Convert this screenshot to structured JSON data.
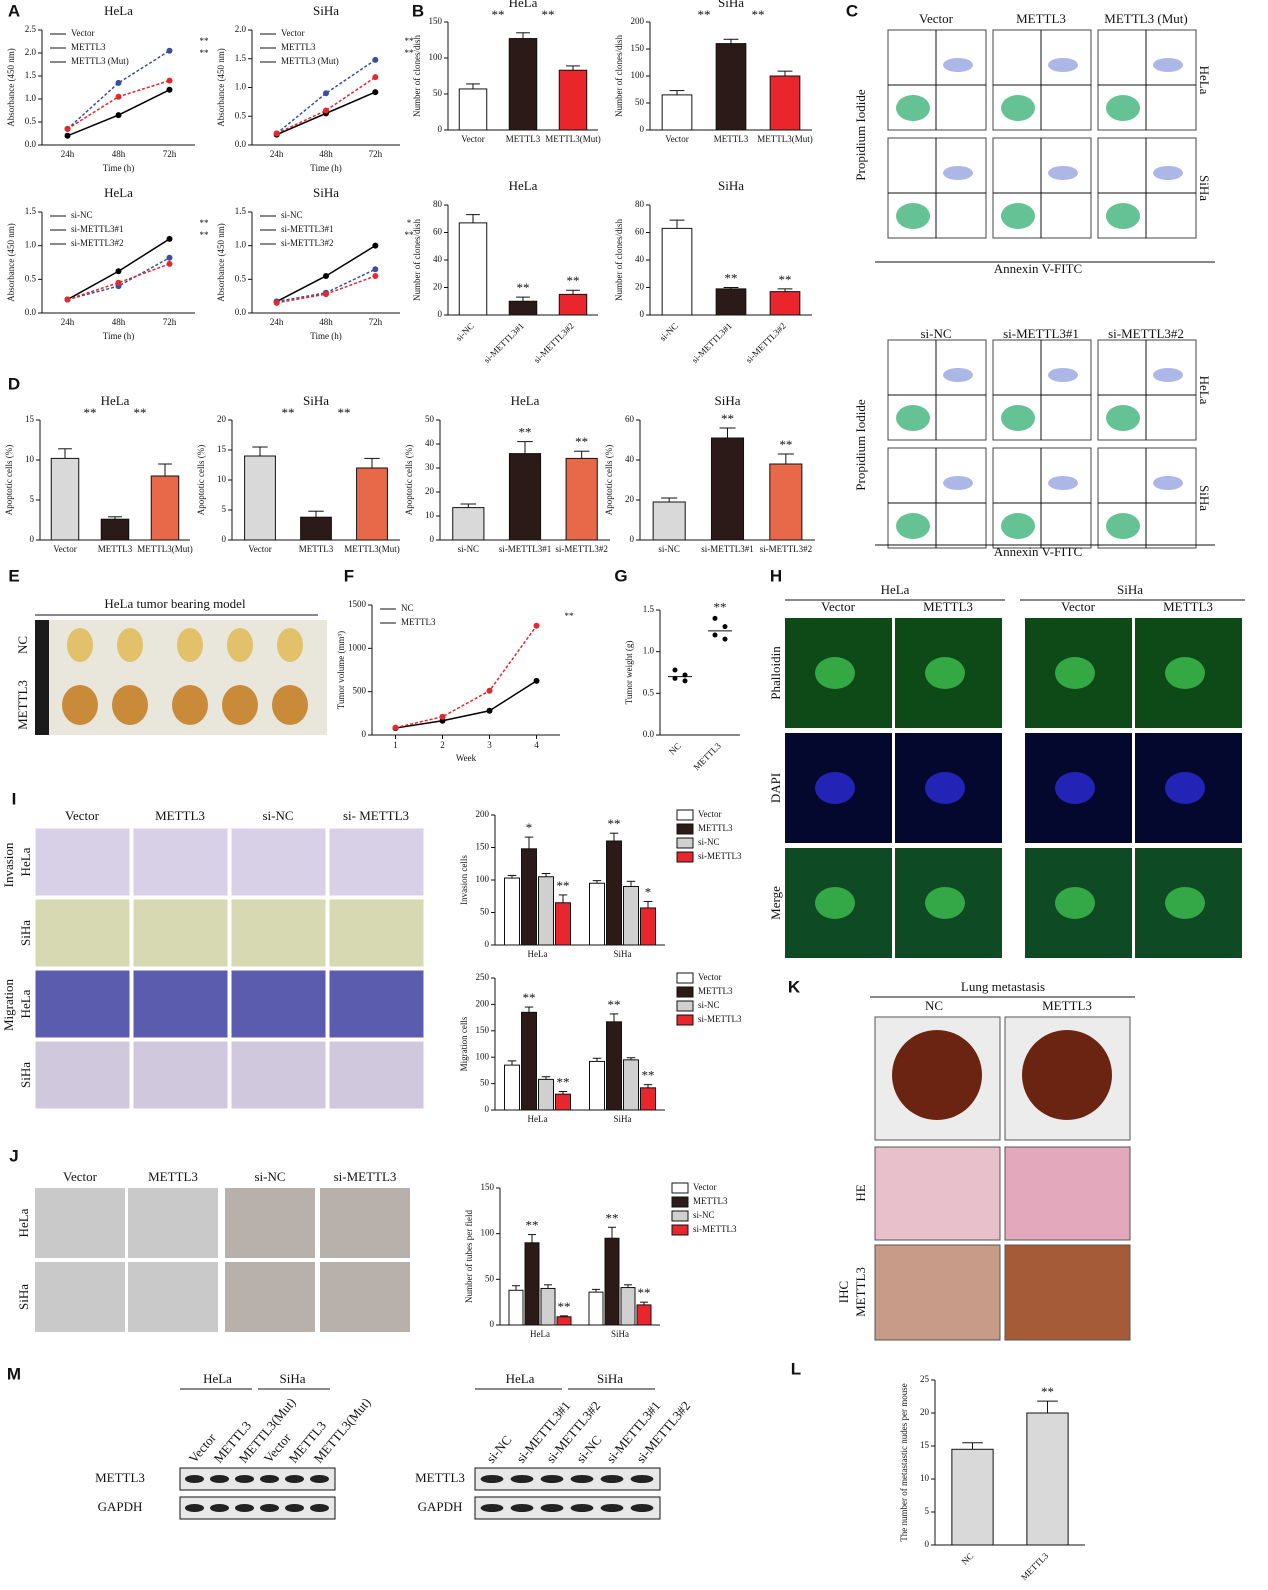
{
  "panel_letters": [
    "A",
    "B",
    "C",
    "D",
    "E",
    "F",
    "G",
    "H",
    "I",
    "J",
    "K",
    "M",
    "L"
  ],
  "chart_data": [
    {
      "type": "line",
      "title": "HeLa",
      "xlabel": "Time (h)",
      "ylabel": "Absorbance (450 nm)",
      "categories": [
        "24h",
        "48h",
        "72h"
      ],
      "series": [
        {
          "name": "Vector",
          "color": "#000000",
          "values": [
            0.2,
            0.65,
            1.2
          ]
        },
        {
          "name": "METTL3",
          "color": "#3a4ea0",
          "values": [
            0.35,
            1.35,
            2.05
          ]
        },
        {
          "name": "METTL3 (Mut)",
          "color": "#e8262b",
          "values": [
            0.35,
            1.05,
            1.4
          ]
        }
      ],
      "ylim": [
        0,
        2.5
      ],
      "yticks": [
        {
          "value": 0,
          "label": "0.0"
        },
        {
          "value": 0.5,
          "label": "0.5"
        },
        {
          "value": 1,
          "label": "1.0"
        },
        {
          "value": 1.5,
          "label": "1.5"
        },
        {
          "value": 2,
          "label": "2.0"
        },
        {
          "value": 2.5,
          "label": "2.5"
        }
      ],
      "legend": "top-left",
      "annotations": [
        "**",
        "**"
      ]
    },
    {
      "type": "line",
      "title": "SiHa",
      "xlabel": "Time (h)",
      "ylabel": "Absorbance (450 nm)",
      "categories": [
        "24h",
        "48h",
        "72h"
      ],
      "series": [
        {
          "name": "Vector",
          "color": "#000000",
          "values": [
            0.18,
            0.55,
            0.92
          ]
        },
        {
          "name": "METTL3",
          "color": "#3a4ea0",
          "values": [
            0.2,
            0.9,
            1.48
          ]
        },
        {
          "name": "METTL3 (Mut)",
          "color": "#e8262b",
          "values": [
            0.2,
            0.6,
            1.18
          ]
        }
      ],
      "ylim": [
        0,
        2
      ],
      "yticks": [
        {
          "value": 0,
          "label": "0.0"
        },
        {
          "value": 0.5,
          "label": "0.5"
        },
        {
          "value": 1,
          "label": "1.0"
        },
        {
          "value": 1.5,
          "label": "1.5"
        },
        {
          "value": 2,
          "label": "2.0"
        }
      ],
      "legend": "top-left",
      "annotations": [
        "**",
        "**"
      ]
    },
    {
      "type": "line",
      "title": "HeLa",
      "xlabel": "Time (h)",
      "ylabel": "Absorbance (450 nm)",
      "categories": [
        "24h",
        "48h",
        "72h"
      ],
      "series": [
        {
          "name": "si-NC",
          "color": "#000000",
          "values": [
            0.2,
            0.62,
            1.1
          ]
        },
        {
          "name": "si-METTL3#1",
          "color": "#3a4ea0",
          "values": [
            0.2,
            0.4,
            0.82
          ]
        },
        {
          "name": "si-METTL3#2",
          "color": "#e8262b",
          "values": [
            0.2,
            0.45,
            0.73
          ]
        }
      ],
      "ylim": [
        0,
        1.5
      ],
      "yticks": [
        {
          "value": 0,
          "label": "0.0"
        },
        {
          "value": 0.5,
          "label": "0.5"
        },
        {
          "value": 1,
          "label": "1.0"
        },
        {
          "value": 1.5,
          "label": "1.5"
        }
      ],
      "legend": "top-left",
      "annotations": [
        "**",
        "**"
      ]
    },
    {
      "type": "line",
      "title": "SiHa",
      "xlabel": "Time (h)",
      "ylabel": "Absorbance (450 nm)",
      "categories": [
        "24h",
        "48h",
        "72h"
      ],
      "series": [
        {
          "name": "si-NC",
          "color": "#000000",
          "values": [
            0.17,
            0.55,
            1.0
          ]
        },
        {
          "name": "si-METTL3#1",
          "color": "#3a4ea0",
          "values": [
            0.17,
            0.3,
            0.65
          ]
        },
        {
          "name": "si-METTL3#2",
          "color": "#e8262b",
          "values": [
            0.15,
            0.28,
            0.55
          ]
        }
      ],
      "ylim": [
        0,
        1.5
      ],
      "yticks": [
        {
          "value": 0,
          "label": "0.0"
        },
        {
          "value": 0.5,
          "label": "0.5"
        },
        {
          "value": 1,
          "label": "1.0"
        },
        {
          "value": 1.5,
          "label": "1.5"
        }
      ],
      "legend": "top-left",
      "annotations": [
        "*",
        "**"
      ]
    },
    {
      "type": "bar",
      "title": "HeLa",
      "ylabel": "Number of clones/dish",
      "categories": [
        "Vector",
        "METTL3",
        "METTL3(Mut)"
      ],
      "values": [
        57,
        127,
        83
      ],
      "errors": [
        7,
        8,
        6
      ],
      "colors": [
        "#ffffff",
        "#2b1a17",
        "#e8262b"
      ],
      "ylim": [
        0,
        150
      ],
      "yticks": [
        0,
        50,
        100,
        150
      ],
      "annotations": [
        "**",
        "**"
      ]
    },
    {
      "type": "bar",
      "title": "SiHa",
      "ylabel": "Number of clones/dish",
      "categories": [
        "Vector",
        "METTL3",
        "METTL3(Mut)"
      ],
      "values": [
        65,
        160,
        100
      ],
      "errors": [
        8,
        8,
        9
      ],
      "colors": [
        "#ffffff",
        "#2b1a17",
        "#e8262b"
      ],
      "ylim": [
        0,
        200
      ],
      "yticks": [
        0,
        50,
        100,
        150,
        200
      ],
      "annotations": [
        "**",
        "**"
      ]
    },
    {
      "type": "bar",
      "title": "HeLa",
      "ylabel": "Number of clones/dish",
      "categories": [
        "si-NC",
        "si-METTL3#1",
        "si-METTL3#2"
      ],
      "values": [
        67,
        10,
        15
      ],
      "errors": [
        6,
        3,
        3
      ],
      "colors": [
        "#ffffff",
        "#2b1a17",
        "#e8262b"
      ],
      "ylim": [
        0,
        80
      ],
      "yticks": [
        0,
        20,
        40,
        60,
        80
      ],
      "significance": [
        null,
        "**",
        "**"
      ]
    },
    {
      "type": "bar",
      "title": "SiHa",
      "ylabel": "Number of clones/dish",
      "categories": [
        "si-NC",
        "si-METTL3#1",
        "si-METTL3#2"
      ],
      "values": [
        63,
        19,
        17
      ],
      "errors": [
        6,
        1,
        2
      ],
      "colors": [
        "#ffffff",
        "#2b1a17",
        "#e8262b"
      ],
      "ylim": [
        0,
        80
      ],
      "yticks": [
        0,
        20,
        40,
        60,
        80
      ],
      "significance": [
        null,
        "**",
        "**"
      ]
    },
    {
      "type": "bar",
      "title": "HeLa",
      "ylabel": "Apoptotic cells (%)",
      "categories": [
        "Vector",
        "METTL3",
        "METTL3(Mut)"
      ],
      "values": [
        10.2,
        2.6,
        8
      ],
      "errors": [
        1.2,
        0.3,
        1.5
      ],
      "colors": [
        "#d9d9d9",
        "#2b1a17",
        "#e8694a"
      ],
      "ylim": [
        0,
        15
      ],
      "yticks": [
        0,
        5,
        10,
        15
      ],
      "annotations": [
        "**",
        "**"
      ]
    },
    {
      "type": "bar",
      "title": "SiHa",
      "ylabel": "Apoptotic cells (%)",
      "categories": [
        "Vector",
        "METTL3",
        "METTL3(Mut)"
      ],
      "values": [
        14,
        3.8,
        12
      ],
      "errors": [
        1.5,
        1,
        1.6
      ],
      "colors": [
        "#d9d9d9",
        "#2b1a17",
        "#e8694a"
      ],
      "ylim": [
        0,
        20
      ],
      "yticks": [
        0,
        5,
        10,
        15,
        20
      ],
      "annotations": [
        "**",
        "**"
      ]
    },
    {
      "type": "bar",
      "title": "HeLa",
      "ylabel": "Apoptotic cells (%)",
      "categories": [
        "si-NC",
        "si-METTL3#1",
        "si-METTL3#2"
      ],
      "values": [
        13.5,
        36,
        34
      ],
      "errors": [
        1.5,
        5,
        3
      ],
      "colors": [
        "#d9d9d9",
        "#2b1a17",
        "#e8694a"
      ],
      "ylim": [
        0,
        50
      ],
      "yticks": [
        0,
        10,
        20,
        30,
        40,
        50
      ],
      "significance": [
        null,
        "**",
        "**"
      ]
    },
    {
      "type": "bar",
      "title": "SiHa",
      "ylabel": "Apoptotic cells (%)",
      "categories": [
        "si-NC",
        "si-METTL3#1",
        "si-METTL3#2"
      ],
      "values": [
        19,
        51,
        38
      ],
      "errors": [
        2,
        5,
        5
      ],
      "colors": [
        "#d9d9d9",
        "#2b1a17",
        "#e8694a"
      ],
      "ylim": [
        0,
        60
      ],
      "yticks": [
        0,
        20,
        40,
        60
      ],
      "significance": [
        null,
        "**",
        "**"
      ]
    },
    {
      "type": "line",
      "xlabel": "Week",
      "ylabel": "Tumor volume (mm³)",
      "x": [
        1,
        2,
        3,
        4
      ],
      "xlim": [
        0.5,
        4.5
      ],
      "xticks": [
        1,
        2,
        3,
        4
      ],
      "series": [
        {
          "name": "NC",
          "color": "#000000",
          "values": [
            80,
            165,
            280,
            625
          ]
        },
        {
          "name": "METTL3",
          "color": "#e8262b",
          "values": [
            85,
            210,
            510,
            1260
          ]
        }
      ],
      "ylim": [
        0,
        1500
      ],
      "yticks": [
        0,
        500,
        1000,
        1500
      ],
      "legend": "top-left",
      "annotations": [
        "**"
      ]
    },
    {
      "type": "strip",
      "ylabel": "Tumor weight (g)",
      "categories": [
        "NC",
        "METTL3"
      ],
      "values": [
        0.7,
        1.25
      ],
      "points": [
        [
          0.78,
          0.72,
          0.68,
          0.65
        ],
        [
          1.4,
          1.3,
          1.2,
          1.15
        ]
      ],
      "color": "#000000",
      "ylim": [
        0,
        1.5
      ],
      "yticks": [
        {
          "value": 0,
          "label": "0.0"
        },
        {
          "value": 0.5,
          "label": "0.5"
        },
        {
          "value": 1,
          "label": "1.0"
        },
        {
          "value": 1.5,
          "label": "1.5"
        }
      ],
      "significance": [
        null,
        "**"
      ]
    },
    {
      "type": "bar",
      "ylabel": "Invasion cells",
      "categories": [
        "HeLa",
        "SiHa"
      ],
      "series": [
        {
          "name": "Vector",
          "color": "#ffffff",
          "values": [
            103,
            95
          ],
          "errors": [
            4,
            4
          ]
        },
        {
          "name": "METTL3",
          "color": "#2b1a17",
          "values": [
            148,
            160
          ],
          "errors": [
            18,
            12
          ],
          "significance": [
            "*",
            "**"
          ]
        },
        {
          "name": "si-NC",
          "color": "#d0d0d0",
          "values": [
            105,
            90
          ],
          "errors": [
            5,
            8
          ]
        },
        {
          "name": "si-METTL3",
          "color": "#e8262b",
          "values": [
            65,
            57
          ],
          "errors": [
            12,
            10
          ],
          "significance": [
            "**",
            "*"
          ]
        }
      ],
      "ylim": [
        0,
        200
      ],
      "yticks": [
        0,
        50,
        100,
        150,
        200
      ],
      "legend": "right"
    },
    {
      "type": "bar",
      "ylabel": "Migration cells",
      "categories": [
        "HeLa",
        "SiHa"
      ],
      "series": [
        {
          "name": "Vector",
          "color": "#ffffff",
          "values": [
            85,
            92
          ],
          "errors": [
            8,
            6
          ]
        },
        {
          "name": "METTL3",
          "color": "#2b1a17",
          "values": [
            185,
            167
          ],
          "errors": [
            10,
            15
          ],
          "significance": [
            "**",
            "**"
          ]
        },
        {
          "name": "si-NC",
          "color": "#d0d0d0",
          "values": [
            58,
            95
          ],
          "errors": [
            5,
            4
          ]
        },
        {
          "name": "si-METTL3",
          "color": "#e8262b",
          "values": [
            30,
            42
          ],
          "errors": [
            5,
            6
          ],
          "significance": [
            "**",
            "**"
          ]
        }
      ],
      "ylim": [
        0,
        250
      ],
      "yticks": [
        0,
        50,
        100,
        150,
        200,
        250
      ],
      "legend": "right"
    },
    {
      "type": "bar",
      "ylabel": "Number of tubes per field",
      "categories": [
        "HeLa",
        "SiHa"
      ],
      "series": [
        {
          "name": "Vector",
          "color": "#ffffff",
          "values": [
            38,
            36
          ],
          "errors": [
            5,
            3
          ]
        },
        {
          "name": "METTL3",
          "color": "#2b1a17",
          "values": [
            90,
            95
          ],
          "errors": [
            9,
            12
          ],
          "significance": [
            "**",
            "**"
          ]
        },
        {
          "name": "si-NC",
          "color": "#d0d0d0",
          "values": [
            40,
            41
          ],
          "errors": [
            4,
            3
          ]
        },
        {
          "name": "si-METTL3",
          "color": "#e8262b",
          "values": [
            9,
            22
          ],
          "errors": [
            1,
            3
          ],
          "significance": [
            "**",
            "**"
          ]
        }
      ],
      "ylim": [
        0,
        150
      ],
      "yticks": [
        0,
        50,
        100,
        150
      ],
      "legend": "right"
    },
    {
      "type": "bar",
      "ylabel": "The number of metastastic nudes per mouse",
      "categories": [
        "NC",
        "METTL3"
      ],
      "values": [
        14.5,
        20
      ],
      "errors": [
        1,
        1.8
      ],
      "colors": [
        "#d9d9d9",
        "#d9d9d9"
      ],
      "ylim": [
        0,
        25
      ],
      "yticks": [
        0,
        5,
        10,
        15,
        20,
        25
      ],
      "significance": [
        null,
        "**"
      ]
    }
  ],
  "flow": [
    {
      "columns": [
        "Vector",
        "METTL3",
        "METTL3 (Mut)"
      ],
      "rows": [
        "HeLa",
        "SiHa"
      ],
      "ylabel": "Propidium Iodide",
      "xlabel": "Annexin V-FITC"
    },
    {
      "columns": [
        "si-NC",
        "si-METTL3#1",
        "si-METTL3#2"
      ],
      "rows": [
        "HeLa",
        "SiHa"
      ],
      "ylabel": "Propidium Iodide",
      "xlabel": "Annexin V-FITC"
    }
  ],
  "tumor": {
    "title": "HeLa tumor bearing model",
    "rows": [
      "NC",
      "METTL3"
    ]
  },
  "phalloidin": {
    "groups": [
      "HeLa",
      "SiHa"
    ],
    "columns": [
      "Vector",
      "METTL3",
      "Vector",
      "METTL3"
    ],
    "rows": [
      "Phalloidin",
      "DAPI",
      "Merge"
    ]
  },
  "transwell": {
    "columns": [
      "Vector",
      "METTL3",
      "si-NC",
      "si- METTL3"
    ],
    "groups": [
      "Invasion",
      "Migration"
    ],
    "rows": [
      "HeLa",
      "SiHa",
      "HeLa",
      "SiHa"
    ]
  },
  "tube": {
    "columns": [
      "Vector",
      "METTL3",
      "si-NC",
      "si-METTL3"
    ],
    "rows": [
      "HeLa",
      "SiHa"
    ]
  },
  "lung": {
    "title": "Lung metastasis",
    "columns": [
      "NC",
      "METTL3"
    ],
    "rows": [
      "HE",
      "IHC"
    ],
    "ihc_target": "METTL3"
  },
  "blots": [
    {
      "groups": [
        "HeLa",
        "SiHa"
      ],
      "lanes": [
        "Vector",
        "METTL3",
        "METTL3(Mut)",
        "Vector",
        "METTL3",
        "METTL3(Mut)"
      ],
      "proteins": [
        "METTL3",
        "GAPDH"
      ]
    },
    {
      "groups": [
        "HeLa",
        "SiHa"
      ],
      "lanes": [
        "si-NC",
        "si-METTL3#1",
        "si-METTL3#2",
        "si-NC",
        "si-METTL3#1",
        "si-METTL3#2"
      ],
      "proteins": [
        "METTL3",
        "GAPDH"
      ]
    }
  ]
}
